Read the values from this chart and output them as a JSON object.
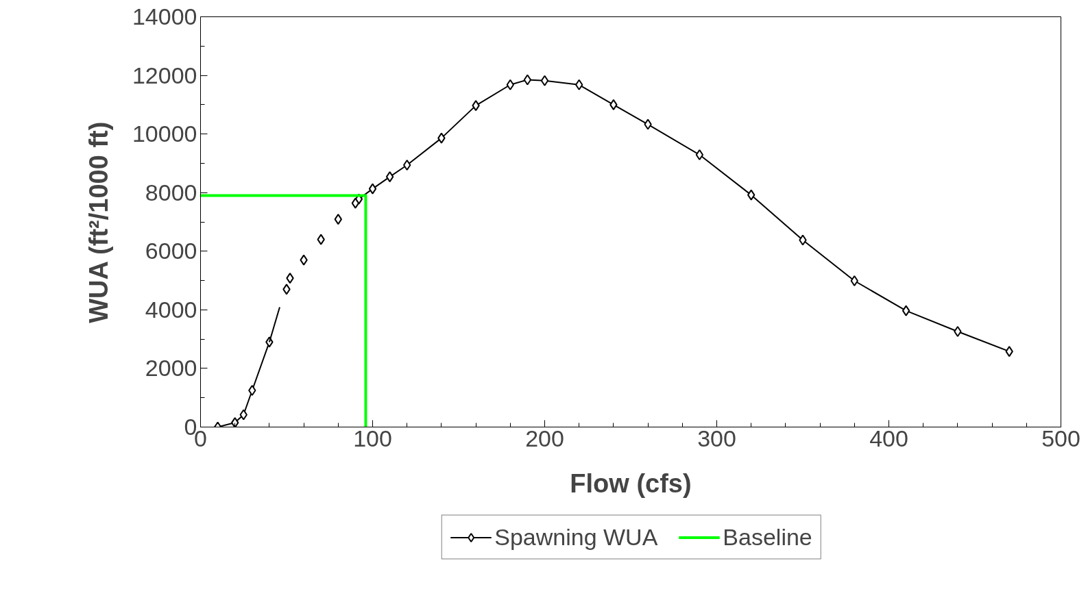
{
  "chart_data": {
    "type": "line",
    "xlabel": "Flow (cfs)",
    "ylabel": "WUA (ft²/1000 ft)",
    "xlim": [
      0,
      500
    ],
    "ylim": [
      0,
      14000
    ],
    "xticks": [
      0,
      {
        "value": 20,
        "label": null
      },
      {
        "value": 40,
        "label": null
      },
      {
        "value": 60,
        "label": null
      },
      {
        "value": 80,
        "label": null
      },
      100,
      {
        "value": 120,
        "label": null
      },
      {
        "value": 140,
        "label": null
      },
      {
        "value": 160,
        "label": null
      },
      {
        "value": 180,
        "label": null
      },
      200,
      {
        "value": 220,
        "label": null
      },
      {
        "value": 240,
        "label": null
      },
      {
        "value": 260,
        "label": null
      },
      {
        "value": 280,
        "label": null
      },
      300,
      {
        "value": 320,
        "label": null
      },
      {
        "value": 340,
        "label": null
      },
      {
        "value": 360,
        "label": null
      },
      {
        "value": 380,
        "label": null
      },
      400,
      {
        "value": 420,
        "label": null
      },
      {
        "value": 440,
        "label": null
      },
      {
        "value": 460,
        "label": null
      },
      {
        "value": 480,
        "label": null
      },
      500
    ],
    "yticks": [
      0,
      {
        "value": 1000,
        "label": null
      },
      2000,
      {
        "value": 3000,
        "label": null
      },
      4000,
      {
        "value": 5000,
        "label": null
      },
      6000,
      {
        "value": 7000,
        "label": null
      },
      8000,
      {
        "value": 9000,
        "label": null
      },
      10000,
      {
        "value": 11000,
        "label": null
      },
      12000,
      {
        "value": 13000,
        "label": null
      },
      14000
    ],
    "grid": false,
    "legend": "bottom",
    "marker": "diamond",
    "line_style": "solid",
    "series": [
      {
        "name": "Spawning WUA",
        "color": "#000000",
        "type": "line",
        "x": [
          10,
          20,
          25,
          30,
          40,
          41,
          92,
          100,
          110,
          120,
          140,
          160,
          180,
          190,
          200,
          220,
          240,
          260,
          290,
          320,
          350,
          380,
          410,
          440,
          470
        ],
        "values": [
          0,
          150,
          420,
          1250,
          2900,
          null,
          7780,
          8130,
          8540,
          8940,
          9860,
          10970,
          11680,
          11850,
          11820,
          11680,
          11000,
          10330,
          9290,
          7920,
          6380,
          4990,
          3970,
          3260,
          2580
        ]
      },
      {
        "color": "#000000",
        "marker": "none",
        "x": [
          40,
          46
        ],
        "values": [
          2900,
          4090
        ]
      },
      {
        "color": "#000000",
        "type": "scatter",
        "x": [
          50,
          52,
          60,
          70,
          80,
          90
        ],
        "values": [
          4700,
          5080,
          5700,
          6400,
          7090,
          7640
        ]
      },
      {
        "name": "Baseline",
        "color": "#00ff00",
        "marker": "none",
        "x": [
          0,
          96,
          96
        ],
        "values": [
          7900,
          7900,
          0
        ]
      }
    ]
  }
}
